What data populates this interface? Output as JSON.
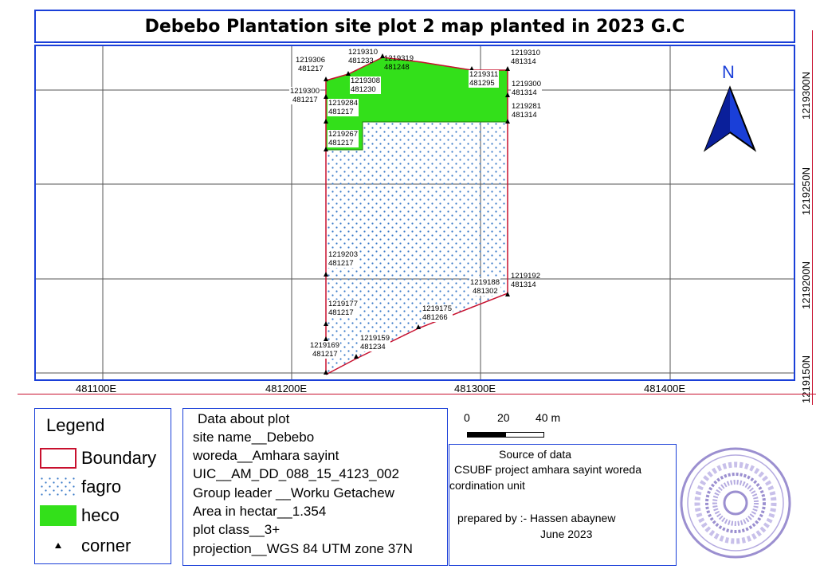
{
  "title": "Debebo Plantation site plot 2 map planted in 2023 G.C",
  "map": {
    "x_ticks": [
      "481100E",
      "481200E",
      "481300E",
      "481400E"
    ],
    "y_ticks": [
      "1219300N",
      "1219250N",
      "1219200N",
      "1219150N"
    ],
    "north_label": "N",
    "colors": {
      "heco": "#33e01a",
      "fagro_dots": "#3a7ac8",
      "boundary": "#c8102e",
      "frame": "#1a3fd8"
    },
    "corner_labels": [
      {
        "n": "1219306",
        "e": "481217"
      },
      {
        "n": "1219310",
        "e": "481233"
      },
      {
        "n": "1219319",
        "e": "481248"
      },
      {
        "n": "1219310",
        "e": "481314"
      },
      {
        "n": "1219311",
        "e": "481295"
      },
      {
        "n": "1219308",
        "e": "481230"
      },
      {
        "n": "1219300",
        "e": "481217"
      },
      {
        "n": "1219300",
        "e": "481314"
      },
      {
        "n": "1219284",
        "e": "481217"
      },
      {
        "n": "1219281",
        "e": "481314"
      },
      {
        "n": "1219267",
        "e": "481217"
      },
      {
        "n": "1219203",
        "e": "481217"
      },
      {
        "n": "1219192",
        "e": "481314"
      },
      {
        "n": "1219188",
        "e": "481302"
      },
      {
        "n": "1219177",
        "e": "481217"
      },
      {
        "n": "1219175",
        "e": "481266"
      },
      {
        "n": "1219159",
        "e": "481234"
      },
      {
        "n": "1219169",
        "e": "481217"
      }
    ]
  },
  "legend": {
    "title": "Legend",
    "items": [
      {
        "label": "Boundary",
        "symbol": "boundary-outline"
      },
      {
        "label": "fagro",
        "symbol": "dotted-fill"
      },
      {
        "label": "heco",
        "symbol": "green-fill"
      },
      {
        "label": "corner",
        "symbol": "triangle"
      }
    ]
  },
  "plot_info": {
    "heading": "Data about plot",
    "site_name": "site name__Debebo",
    "woreda": "woreda__Amhara sayint",
    "uic": "UIC__AM_DD_088_15_4123_002",
    "group_leader": "Group leader __Worku Getachew",
    "area": "Area in hectar__1.354",
    "plot_class": "plot class__3+",
    "projection": "projection__WGS 84 UTM zone 37N"
  },
  "scale_bar": {
    "labels": [
      "0",
      "20",
      "40 m"
    ]
  },
  "source": {
    "heading": "Source of data",
    "line1": "CSUBF project amhara sayint woreda",
    "line2": "cordination unit",
    "prepared_by": "prepared by :- Hassen abaynew",
    "date": "June 2023"
  }
}
